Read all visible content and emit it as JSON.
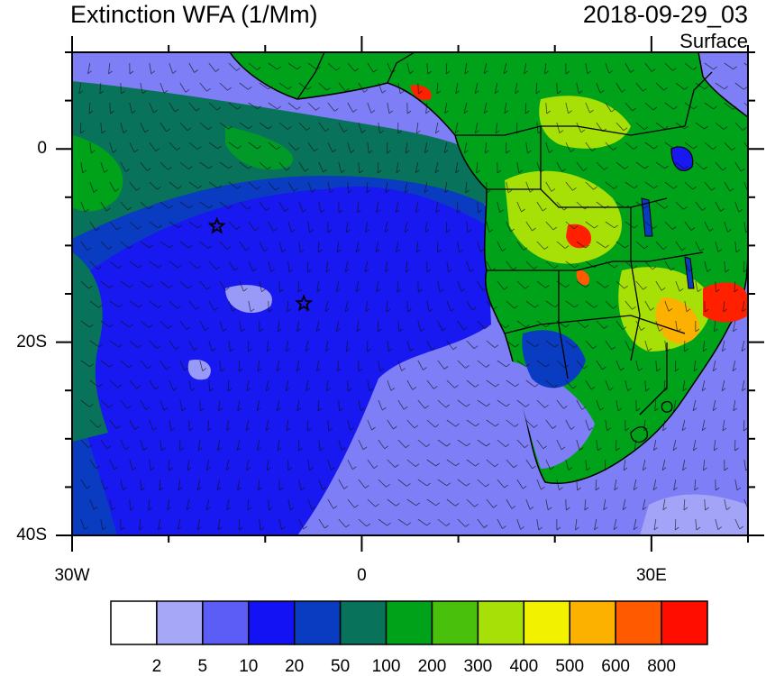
{
  "title": {
    "left": "Extinction WFA (1/Mm)",
    "right": "2018-09-29_03",
    "subtitle": "Surface"
  },
  "axes": {
    "x_ticks": [
      {
        "value": -30,
        "label": "30W"
      },
      {
        "value": 0,
        "label": "0"
      },
      {
        "value": 30,
        "label": "30E"
      }
    ],
    "y_ticks": [
      {
        "value": 0,
        "label": "0"
      },
      {
        "value": -20,
        "label": "20S"
      },
      {
        "value": -40,
        "label": "40S"
      }
    ],
    "lon_range": [
      -30,
      40
    ],
    "lat_range": [
      -40,
      10
    ]
  },
  "markers": [
    {
      "name": "star-marker",
      "lon": -15,
      "lat": -8
    },
    {
      "name": "star-marker",
      "lon": -6,
      "lat": -16
    }
  ],
  "colorbar": {
    "labels": [
      "2",
      "5",
      "10",
      "20",
      "50",
      "100",
      "200",
      "300",
      "400",
      "500",
      "600",
      "800"
    ],
    "colors": [
      "#ffffff",
      "#a7a7f7",
      "#5c5cf7",
      "#1212f5",
      "#0a3cc2",
      "#08735a",
      "#00a21a",
      "#48c00c",
      "#a6e006",
      "#f2f200",
      "#fcb000",
      "#ff5a00",
      "#ff0e00"
    ]
  },
  "colors": {
    "ocean_low": "#7e7ef6",
    "ocean_mid": "#1818f0",
    "ocean_high": "#0a3cc2",
    "plume": "#08735a",
    "land_green": "#00a21a",
    "land_yellow": "#a6e006",
    "hotspot": "#ff2000"
  }
}
